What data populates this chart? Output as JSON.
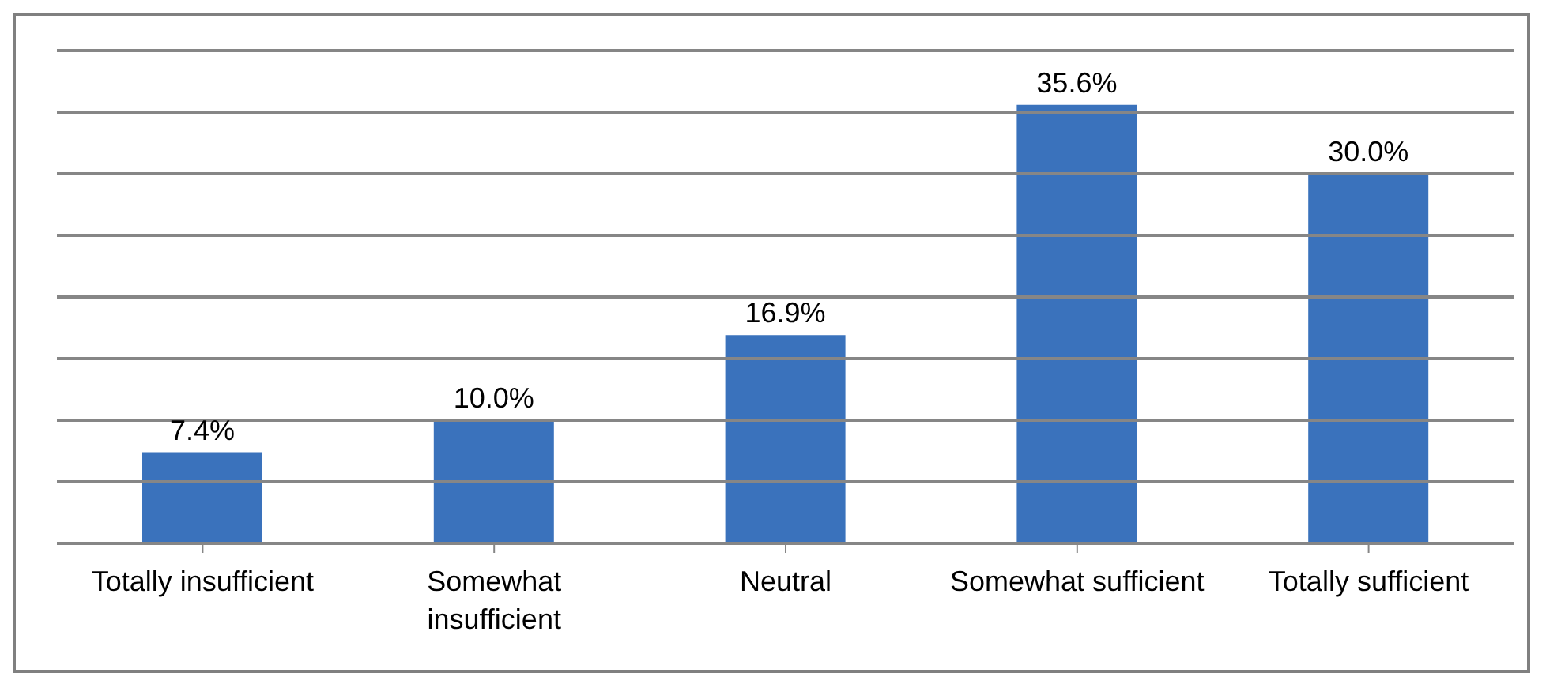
{
  "chart_data": {
    "type": "bar",
    "categories": [
      "Totally insufficient",
      "Somewhat insufficient",
      "Neutral",
      "Somewhat sufficient",
      "Totally sufficient"
    ],
    "values": [
      7.4,
      10.0,
      16.9,
      35.6,
      30.0
    ],
    "value_labels": [
      "7.4%",
      "10.0%",
      "16.9%",
      "35.6%",
      "30.0%"
    ],
    "color": "#3a72bc",
    "ylim": [
      0,
      40
    ],
    "yticks": [
      {
        "value": 0,
        "label": null
      },
      {
        "value": 5,
        "label": null
      },
      {
        "value": 10,
        "label": null
      },
      {
        "value": 15,
        "label": null
      },
      {
        "value": 20,
        "label": null
      },
      {
        "value": 25,
        "label": null
      },
      {
        "value": 30,
        "label": null
      },
      {
        "value": 35,
        "label": null
      },
      {
        "value": 40,
        "label": null
      }
    ],
    "grid": "y",
    "tick_labels": "x"
  }
}
